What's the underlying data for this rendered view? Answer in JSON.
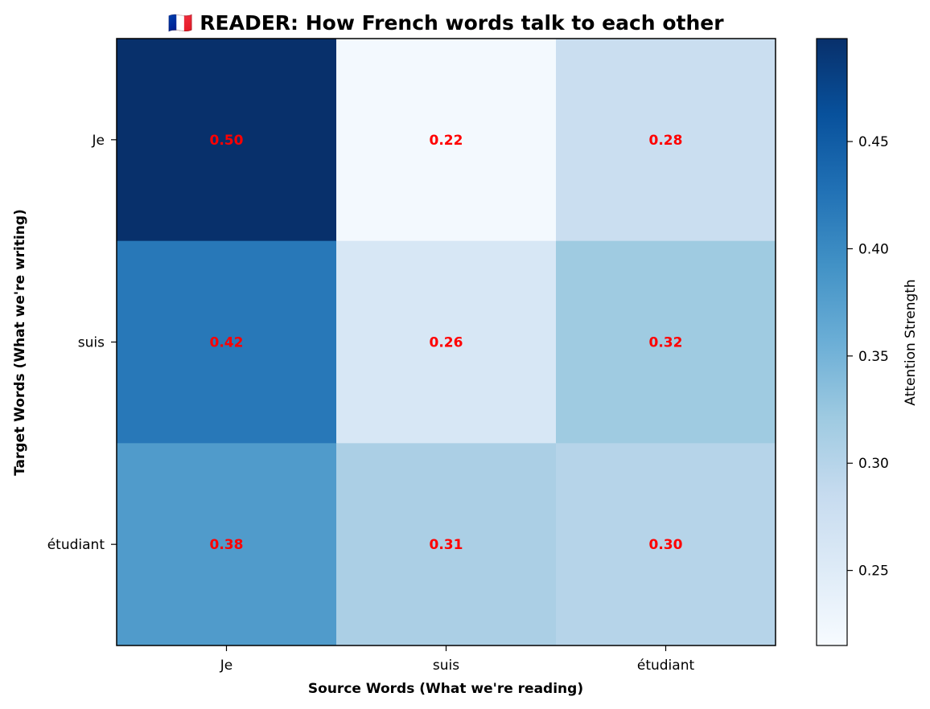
{
  "chart_data": {
    "type": "heatmap",
    "title": "🇫🇷 READER: How French words talk to each other",
    "xlabel": "Source Words (What we're reading)",
    "ylabel": "Target Words (What we're writing)",
    "x_categories": [
      "Je",
      "suis",
      "étudiant"
    ],
    "y_categories": [
      "Je",
      "suis",
      "étudiant"
    ],
    "values": [
      [
        0.5,
        0.22,
        0.28
      ],
      [
        0.42,
        0.26,
        0.32
      ],
      [
        0.38,
        0.31,
        0.3
      ]
    ],
    "value_labels": [
      [
        "0.50",
        "0.22",
        "0.28"
      ],
      [
        "0.42",
        "0.26",
        "0.32"
      ],
      [
        "0.38",
        "0.31",
        "0.30"
      ]
    ],
    "annotation_color": "#ff0000",
    "colormap": "Blues",
    "colorbar": {
      "label": "Attention Strength",
      "vmin": 0.215,
      "vmax": 0.498,
      "ticks": [
        0.25,
        0.3,
        0.35,
        0.4,
        0.45
      ],
      "tick_labels": [
        "0.25",
        "0.30",
        "0.35",
        "0.40",
        "0.45"
      ]
    },
    "grid": false
  }
}
